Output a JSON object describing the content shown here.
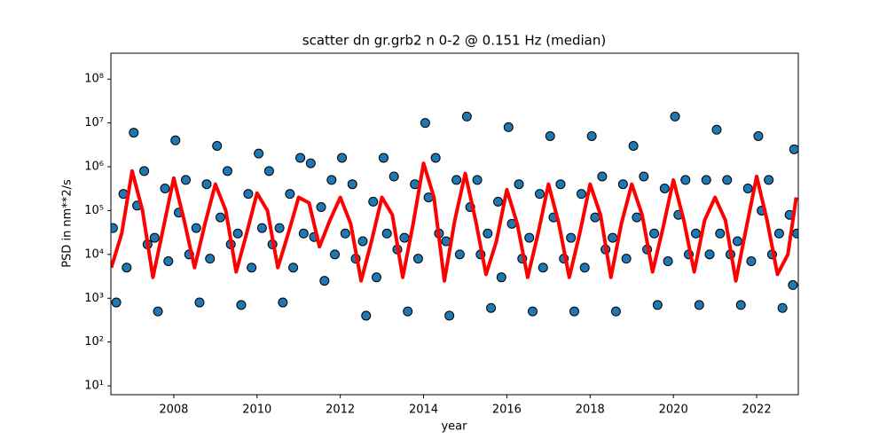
{
  "chart_data": {
    "type": "scatter",
    "title": "scatter dn gr.grb2 n 0-2 @ 0.151 Hz (median)",
    "x_label": "year",
    "y_label": "PSD in nm**2/s",
    "xlim": [
      2006.49,
      2023.0
    ],
    "ylim": [
      6.3,
      390000000
    ],
    "yscale": "log",
    "xticks": [
      2008,
      2010,
      2012,
      2014,
      2016,
      2018,
      2020,
      2022
    ],
    "yticks": [
      {
        "value": 10,
        "label": "10¹"
      },
      {
        "value": 100,
        "label": "10²"
      },
      {
        "value": 1000,
        "label": "10³"
      },
      {
        "value": 10000,
        "label": "10⁴"
      },
      {
        "value": 100000,
        "label": "10⁵"
      },
      {
        "value": 1000000,
        "label": "10⁶"
      },
      {
        "value": 10000000,
        "label": "10⁷"
      },
      {
        "value": 100000000,
        "label": "10⁸"
      }
    ],
    "series": [
      {
        "type": "scatter",
        "color": "#1f77b4",
        "edgecolor": "#000000",
        "x": [
          2006.54,
          2006.62,
          2006.79,
          2006.87,
          2007.04,
          2007.12,
          2007.29,
          2007.37,
          2007.54,
          2007.62,
          2007.79,
          2007.87,
          2008.04,
          2008.12,
          2008.29,
          2008.37,
          2008.54,
          2008.62,
          2008.79,
          2008.87,
          2009.04,
          2009.12,
          2009.29,
          2009.37,
          2009.54,
          2009.62,
          2009.79,
          2009.87,
          2010.04,
          2010.12,
          2010.29,
          2010.37,
          2010.54,
          2010.62,
          2010.79,
          2010.87,
          2011.04,
          2011.12,
          2011.29,
          2011.37,
          2011.54,
          2011.62,
          2011.79,
          2011.87,
          2012.04,
          2012.12,
          2012.29,
          2012.37,
          2012.54,
          2012.62,
          2012.79,
          2012.87,
          2013.04,
          2013.12,
          2013.29,
          2013.37,
          2013.54,
          2013.62,
          2013.79,
          2013.87,
          2014.04,
          2014.12,
          2014.29,
          2014.37,
          2014.54,
          2014.62,
          2014.79,
          2014.87,
          2015.04,
          2015.12,
          2015.29,
          2015.37,
          2015.54,
          2015.62,
          2015.79,
          2015.87,
          2016.04,
          2016.12,
          2016.29,
          2016.37,
          2016.54,
          2016.62,
          2016.79,
          2016.87,
          2017.04,
          2017.12,
          2017.29,
          2017.37,
          2017.54,
          2017.62,
          2017.79,
          2017.87,
          2018.04,
          2018.12,
          2018.29,
          2018.37,
          2018.54,
          2018.62,
          2018.79,
          2018.87,
          2019.04,
          2019.12,
          2019.29,
          2019.37,
          2019.54,
          2019.62,
          2019.79,
          2019.87,
          2020.04,
          2020.12,
          2020.29,
          2020.37,
          2020.54,
          2020.62,
          2020.79,
          2020.87,
          2021.04,
          2021.12,
          2021.29,
          2021.37,
          2021.54,
          2021.62,
          2021.79,
          2021.87,
          2022.04,
          2022.12,
          2022.29,
          2022.37,
          2022.54,
          2022.62,
          2022.79,
          2022.87,
          2022.9,
          2022.97
        ],
        "values": [
          40000,
          800,
          240000,
          5000,
          6000000,
          130000,
          800000,
          17000,
          24000,
          500,
          320000,
          7000,
          4000000,
          90000,
          500000,
          10000,
          40000,
          800,
          400000,
          8000,
          3000000,
          70000,
          800000,
          17000,
          30000,
          700,
          240000,
          5000,
          2000000,
          40000,
          800000,
          17000,
          40000,
          800,
          240000,
          5000,
          1600000,
          30000,
          1200000,
          25000,
          120000,
          2500,
          500000,
          10000,
          1600000,
          30000,
          400000,
          8000,
          20000,
          400,
          160000,
          3000,
          1600000,
          30000,
          600000,
          13000,
          24000,
          500,
          400000,
          8000,
          10000000,
          200000,
          1600000,
          30000,
          20000,
          400,
          500000,
          10000,
          14000000,
          120000,
          500000,
          10000,
          30000,
          600,
          160000,
          3000,
          8000000,
          50000,
          400000,
          8000,
          24000,
          500,
          240000,
          5000,
          5000000,
          70000,
          400000,
          8000,
          24000,
          500,
          240000,
          5000,
          5000000,
          70000,
          600000,
          13000,
          24000,
          500,
          400000,
          8000,
          3000000,
          70000,
          600000,
          13000,
          30000,
          700,
          320000,
          7000,
          14000000,
          80000,
          500000,
          10000,
          30000,
          700,
          500000,
          10000,
          7000000,
          30000,
          500000,
          10000,
          20000,
          700,
          320000,
          7000,
          5000000,
          100000,
          500000,
          10000,
          30000,
          600,
          80000,
          2000,
          2500000,
          30000
        ]
      },
      {
        "type": "line",
        "color": "#ff0000",
        "x": [
          2006.5,
          2006.75,
          2007,
          2007.25,
          2007.5,
          2007.75,
          2008,
          2008.25,
          2008.5,
          2008.75,
          2009,
          2009.25,
          2009.5,
          2009.75,
          2010,
          2010.25,
          2010.5,
          2010.75,
          2011,
          2011.25,
          2011.5,
          2011.75,
          2012,
          2012.25,
          2012.5,
          2012.75,
          2013,
          2013.25,
          2013.5,
          2013.75,
          2014,
          2014.25,
          2014.5,
          2014.75,
          2015,
          2015.25,
          2015.5,
          2015.75,
          2016,
          2016.25,
          2016.5,
          2016.75,
          2017,
          2017.25,
          2017.5,
          2017.75,
          2018,
          2018.25,
          2018.5,
          2018.75,
          2019,
          2019.25,
          2019.5,
          2019.75,
          2020,
          2020.25,
          2020.5,
          2020.75,
          2021,
          2021.25,
          2021.5,
          2021.75,
          2022,
          2022.25,
          2022.5,
          2022.75,
          2022.95
        ],
        "values": [
          5000,
          30000,
          800000,
          100000,
          3000,
          40000,
          550000,
          60000,
          5000,
          50000,
          400000,
          100000,
          4000,
          30000,
          250000,
          100000,
          5000,
          30000,
          200000,
          150000,
          15000,
          60000,
          200000,
          50000,
          2500,
          20000,
          200000,
          80000,
          3000,
          50000,
          1200000,
          200000,
          2500,
          60000,
          700000,
          60000,
          3500,
          20000,
          300000,
          50000,
          3000,
          30000,
          400000,
          50000,
          3000,
          30000,
          400000,
          80000,
          3000,
          50000,
          400000,
          80000,
          4000,
          40000,
          500000,
          60000,
          4000,
          60000,
          200000,
          60000,
          2500,
          40000,
          600000,
          60000,
          3500,
          10000,
          200000
        ]
      }
    ]
  }
}
